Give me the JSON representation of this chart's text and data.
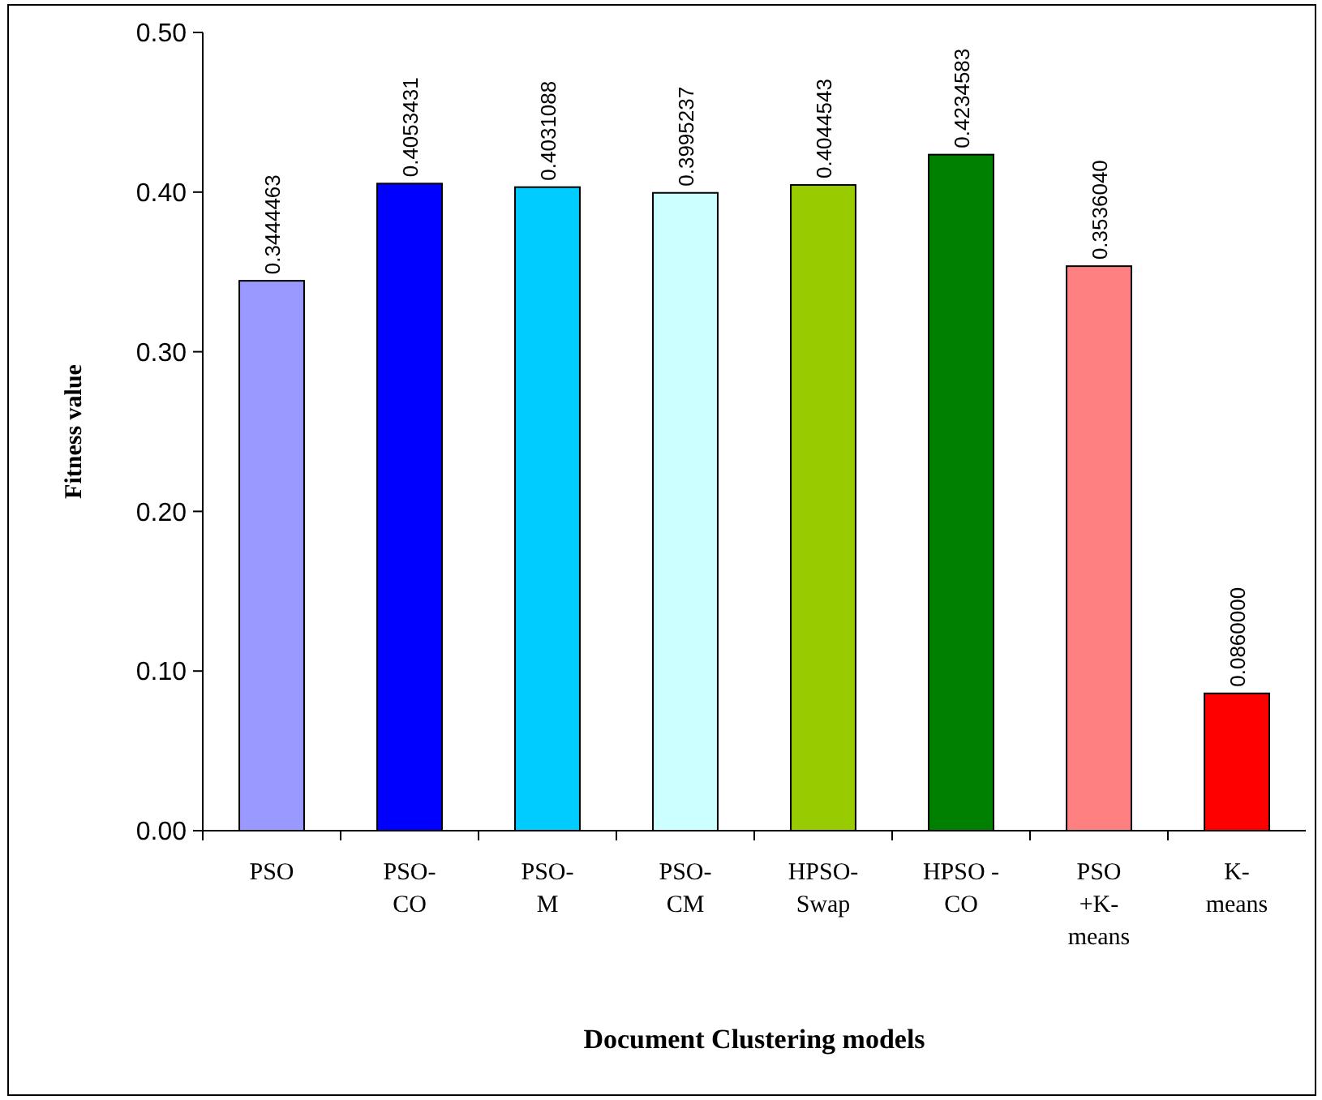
{
  "chart_data": {
    "type": "bar",
    "xlabel": "Document Clustering models",
    "ylabel": "Fitness value",
    "categories": [
      "PSO",
      "PSO-\nCO",
      "PSO-\nM",
      "PSO-\nCM",
      "HPSO-\nSwap",
      "HPSO -\nCO",
      "PSO\n+K-\nmeans",
      "K-\nmeans"
    ],
    "values": [
      0.3444463,
      0.4053431,
      0.4031088,
      0.3995237,
      0.4044543,
      0.4234583,
      0.353604,
      0.086
    ],
    "value_labels": [
      "0.3444463",
      "0.4053431",
      "0.4031088",
      "0.3995237",
      "0.4044543",
      "0.4234583",
      "0.3536040",
      "0.0860000"
    ],
    "colors": [
      "#9999ff",
      "#0000ff",
      "#00ccff",
      "#ccffff",
      "#99cc00",
      "#008000",
      "#ff8080",
      "#ff0000"
    ],
    "ylim": [
      0,
      0.5
    ],
    "yticks": [
      {
        "value": 0,
        "label": "0.00"
      },
      {
        "value": 0.1,
        "label": "0.10"
      },
      {
        "value": 0.2,
        "label": "0.20"
      },
      {
        "value": 0.3,
        "label": "0.30"
      },
      {
        "value": 0.4,
        "label": "0.40"
      },
      {
        "value": 0.5,
        "label": "0.50"
      }
    ],
    "grid": false
  }
}
